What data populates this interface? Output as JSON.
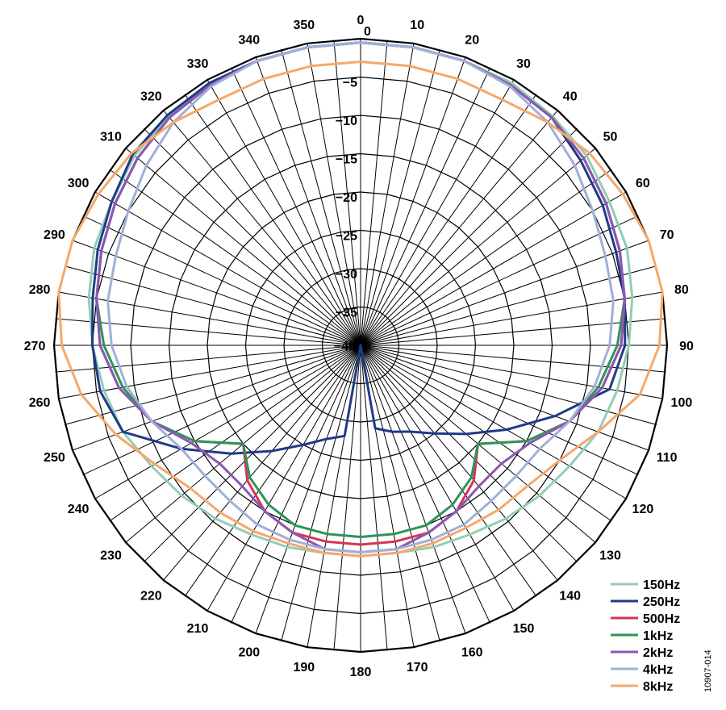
{
  "chart_data": {
    "type": "polar-line",
    "figure_id": "10907-014",
    "radial_axis": {
      "min": -40,
      "max": 0,
      "tick_labels": [
        "0",
        "−5",
        "−10",
        "−15",
        "−20",
        "−25",
        "−30",
        "−35",
        "−40"
      ],
      "tick_values": [
        0,
        -5,
        -10,
        -15,
        -20,
        -25,
        -30,
        -35,
        -40
      ]
    },
    "angular_axis": {
      "direction": "clockwise",
      "zero_at": "top",
      "step_degrees": 10,
      "tick_labels": [
        "0",
        "10",
        "20",
        "30",
        "40",
        "50",
        "60",
        "70",
        "80",
        "90",
        "100",
        "110",
        "120",
        "130",
        "140",
        "150",
        "160",
        "170",
        "180",
        "190",
        "200",
        "210",
        "220",
        "230",
        "240",
        "250",
        "260",
        "270",
        "280",
        "290",
        "300",
        "310",
        "320",
        "330",
        "340",
        "350"
      ]
    },
    "angles": [
      0,
      10,
      20,
      30,
      40,
      50,
      60,
      70,
      80,
      90,
      100,
      110,
      120,
      130,
      140,
      150,
      160,
      170,
      180,
      190,
      200,
      210,
      220,
      230,
      240,
      250,
      260,
      270,
      280,
      290,
      300,
      310,
      320,
      330,
      340,
      350
    ],
    "series": [
      {
        "name": "150Hz",
        "color": "#93cdb3",
        "values": [
          -0.5,
          -0.5,
          -0.5,
          -0.5,
          -1,
          -1.5,
          -2.5,
          -3,
          -4,
          -5,
          -6,
          -7,
          -8.5,
          -9.5,
          -10.5,
          -11.5,
          -12,
          -12.5,
          -12.5,
          -12.5,
          -12,
          -11.5,
          -10.5,
          -9.5,
          -8.5,
          -7,
          -6,
          -5,
          -4,
          -3,
          -2.5,
          -1.5,
          -1,
          -0.5,
          -0.5,
          -0.5
        ]
      },
      {
        "name": "250Hz",
        "color": "#1f3b87",
        "values": [
          -0.5,
          -0.5,
          -0.5,
          -0.8,
          -1.2,
          -2.5,
          -3.5,
          -4.5,
          -5,
          -5.5,
          -7,
          -13,
          -18,
          -22,
          -25,
          -27,
          -28,
          -29,
          -40,
          -28,
          -27,
          -25,
          -22,
          -18,
          -13,
          -7,
          -5.5,
          -5,
          -4.5,
          -3.5,
          -2.5,
          -1.2,
          -0.8,
          -0.5,
          -0.5,
          -0.5
        ]
      },
      {
        "name": "500Hz",
        "color": "#d33654",
        "values": [
          -0.5,
          -0.5,
          -0.5,
          -0.8,
          -1.2,
          -2,
          -3,
          -4,
          -5,
          -6,
          -8,
          -11,
          -15,
          -20,
          -17,
          -15,
          -14,
          -14,
          -14,
          -14,
          -14,
          -15,
          -17,
          -20,
          -15,
          -11,
          -8,
          -6,
          -5,
          -4,
          -3,
          -2,
          -1.2,
          -0.8,
          -0.5,
          -0.5
        ]
      },
      {
        "name": "1kHz",
        "color": "#2e9457",
        "values": [
          -0.5,
          -0.5,
          -0.5,
          -0.8,
          -1.2,
          -2,
          -3,
          -4,
          -5,
          -6.5,
          -8.5,
          -11,
          -15,
          -20,
          -17.5,
          -16,
          -15,
          -15,
          -15,
          -15,
          -15,
          -16,
          -17.5,
          -20,
          -15,
          -11,
          -8.5,
          -6.5,
          -5,
          -4,
          -3,
          -2,
          -1.2,
          -0.8,
          -0.5,
          -0.5
        ]
      },
      {
        "name": "2kHz",
        "color": "#8a57b4",
        "values": [
          -0.5,
          -0.5,
          -0.5,
          -0.8,
          -1.2,
          -2,
          -3,
          -4,
          -5,
          -6,
          -8,
          -11,
          -14.5,
          -16,
          -16,
          -15,
          -14,
          -13,
          -13,
          -13,
          -14,
          -15,
          -16,
          -16,
          -14.5,
          -11,
          -8,
          -6,
          -5,
          -4,
          -3,
          -2,
          -1.2,
          -0.8,
          -0.5,
          -0.5
        ]
      },
      {
        "name": "4kHz",
        "color": "#a1afd8",
        "values": [
          -0.5,
          -0.5,
          -0.5,
          -1,
          -2,
          -3.5,
          -5,
          -6,
          -6.5,
          -7.5,
          -9,
          -11,
          -13,
          -13.5,
          -13.5,
          -13,
          -13,
          -13,
          -13,
          -13,
          -13,
          -13,
          -13.5,
          -13.5,
          -13,
          -11,
          -9,
          -7.5,
          -6.5,
          -6,
          -5,
          -3.5,
          -2,
          -1,
          -0.5,
          -0.5
        ]
      },
      {
        "name": "8kHz",
        "color": "#f5a86a",
        "values": [
          -3,
          -3,
          -3,
          -3,
          -2,
          -1,
          -0.5,
          0,
          0,
          -1,
          -3,
          -7,
          -10,
          -11.5,
          -12,
          -12.5,
          -12.5,
          -12.5,
          -12.5,
          -12.5,
          -12.5,
          -12,
          -11.5,
          -11,
          -9,
          -6,
          -3,
          -1,
          0,
          0,
          -0.5,
          -1,
          -2,
          -3,
          -3,
          -3
        ]
      }
    ]
  }
}
